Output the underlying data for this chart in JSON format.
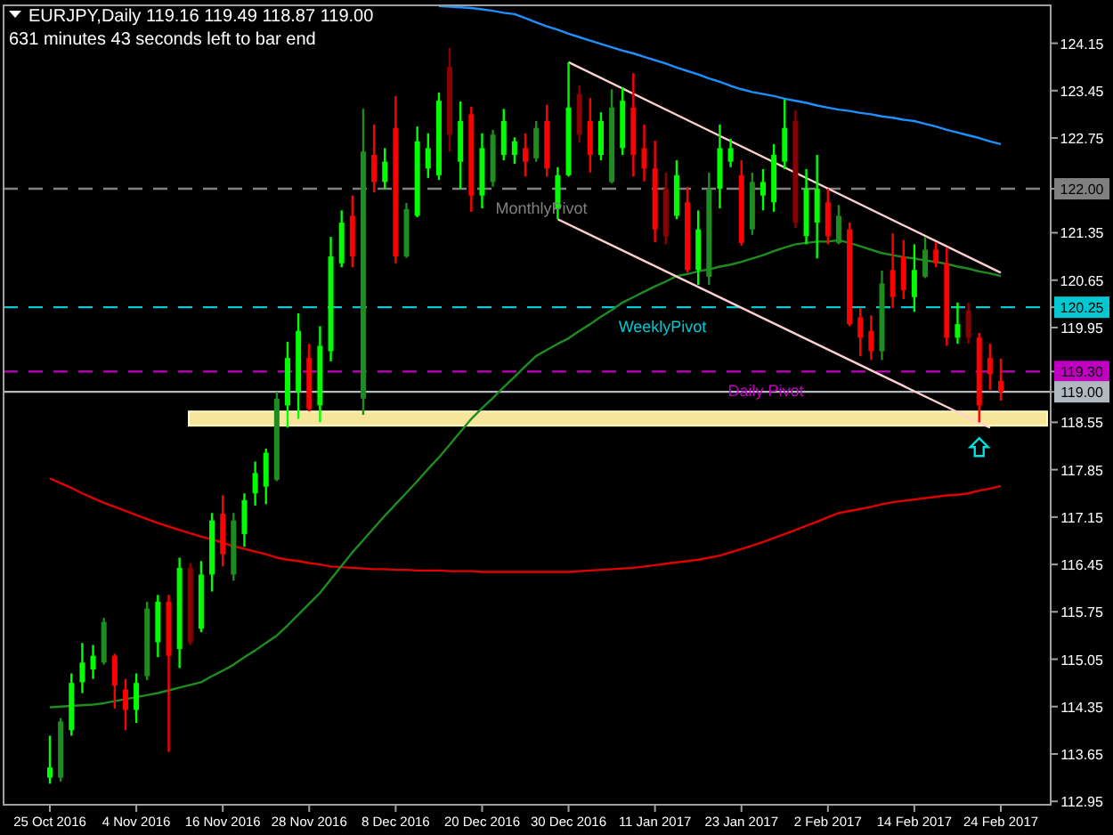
{
  "chart_data": {
    "type": "candlestick",
    "title": "EURJPY,Daily  119.16 119.49 118.87 119.00",
    "subtitle": "631 minutes 43 seconds left to bar end",
    "categories": [
      "25 Oct 2016",
      null,
      null,
      null,
      null,
      null,
      null,
      null,
      "4 Nov 2016",
      null,
      null,
      null,
      null,
      null,
      null,
      null,
      "16 Nov 2016",
      null,
      null,
      null,
      null,
      null,
      null,
      null,
      "28 Nov 2016",
      null,
      null,
      null,
      null,
      null,
      null,
      null,
      "8 Dec 2016",
      null,
      null,
      null,
      null,
      null,
      null,
      null,
      "20 Dec 2016",
      null,
      null,
      null,
      null,
      null,
      null,
      null,
      "30 Dec 2016",
      null,
      null,
      null,
      null,
      null,
      null,
      null,
      "11 Jan 2017",
      null,
      null,
      null,
      null,
      null,
      null,
      null,
      "23 Jan 2017",
      null,
      null,
      null,
      null,
      null,
      null,
      null,
      "2 Feb 2017",
      null,
      null,
      null,
      null,
      null,
      null,
      null,
      "14 Feb 2017",
      null,
      null,
      null,
      null,
      null,
      null,
      null,
      "24 Feb 2017"
    ],
    "ohlc": [
      [
        113.3,
        113.92,
        113.21,
        113.45
      ],
      [
        113.3,
        114.18,
        113.24,
        114.13
      ],
      [
        114.0,
        114.84,
        113.92,
        114.7
      ],
      [
        114.71,
        115.29,
        114.55,
        115.0
      ],
      [
        114.9,
        115.26,
        114.76,
        115.1
      ],
      [
        115.0,
        115.66,
        114.97,
        115.6
      ],
      [
        115.1,
        115.13,
        114.32,
        114.66
      ],
      [
        114.6,
        114.76,
        114.0,
        114.3
      ],
      [
        114.3,
        114.84,
        114.11,
        114.7
      ],
      [
        114.8,
        115.9,
        114.74,
        115.8
      ],
      [
        115.3,
        116.0,
        115.08,
        115.9
      ],
      [
        115.9,
        116.0,
        113.68,
        115.1
      ],
      [
        115.2,
        116.55,
        114.92,
        116.4
      ],
      [
        116.4,
        116.47,
        115.26,
        115.3
      ],
      [
        115.5,
        116.5,
        115.45,
        116.3
      ],
      [
        116.3,
        117.21,
        116.05,
        117.1
      ],
      [
        117.2,
        117.47,
        116.42,
        116.6
      ],
      [
        116.3,
        117.21,
        116.21,
        117.1
      ],
      [
        116.9,
        117.5,
        116.71,
        117.4
      ],
      [
        117.5,
        117.97,
        117.32,
        117.8
      ],
      [
        117.6,
        118.16,
        117.34,
        118.1
      ],
      [
        117.7,
        119.0,
        117.68,
        118.9
      ],
      [
        118.8,
        119.74,
        118.47,
        119.5
      ],
      [
        119.0,
        120.16,
        118.6,
        119.9
      ],
      [
        119.5,
        119.71,
        118.71,
        118.75
      ],
      [
        118.8,
        119.97,
        118.55,
        119.68
      ],
      [
        119.6,
        121.29,
        119.45,
        121.0
      ],
      [
        120.9,
        121.68,
        120.84,
        121.5
      ],
      [
        121.6,
        121.9,
        120.84,
        121.0
      ],
      [
        118.9,
        123.18,
        118.66,
        122.55
      ],
      [
        122.5,
        122.95,
        121.95,
        122.1
      ],
      [
        122.1,
        122.6,
        122.0,
        122.4
      ],
      [
        122.9,
        123.37,
        120.9,
        121.0
      ],
      [
        121.0,
        121.79,
        120.98,
        121.7
      ],
      [
        121.6,
        122.92,
        121.58,
        122.7
      ],
      [
        122.3,
        122.82,
        122.16,
        122.6
      ],
      [
        122.2,
        123.42,
        122.13,
        123.3
      ],
      [
        123.8,
        124.08,
        122.55,
        122.8
      ],
      [
        122.4,
        123.29,
        122.0,
        123.0
      ],
      [
        123.1,
        123.21,
        121.66,
        121.9
      ],
      [
        121.9,
        122.82,
        121.71,
        122.6
      ],
      [
        122.1,
        122.87,
        122.03,
        122.8
      ],
      [
        122.5,
        123.18,
        122.42,
        123.0
      ],
      [
        122.5,
        122.76,
        122.37,
        122.7
      ],
      [
        122.6,
        122.82,
        122.18,
        122.4
      ],
      [
        122.45,
        123.0,
        122.4,
        122.9
      ],
      [
        123.0,
        123.24,
        122.18,
        122.3
      ],
      [
        121.7,
        122.32,
        121.55,
        122.2
      ],
      [
        122.2,
        123.87,
        122.18,
        123.2
      ],
      [
        123.4,
        123.53,
        122.68,
        122.8
      ],
      [
        123.0,
        123.34,
        122.24,
        122.5
      ],
      [
        122.5,
        123.13,
        122.42,
        123.0
      ],
      [
        122.1,
        123.47,
        122.08,
        123.2
      ],
      [
        122.6,
        123.5,
        122.5,
        123.3
      ],
      [
        123.2,
        123.71,
        122.18,
        122.5
      ],
      [
        122.6,
        122.95,
        122.11,
        122.3
      ],
      [
        122.3,
        122.71,
        121.21,
        121.4
      ],
      [
        122.0,
        122.24,
        121.18,
        121.3
      ],
      [
        121.6,
        122.42,
        121.55,
        122.2
      ],
      [
        121.8,
        122.03,
        120.76,
        120.8
      ],
      [
        120.8,
        121.68,
        120.58,
        121.4
      ],
      [
        120.7,
        122.24,
        120.58,
        122.0
      ],
      [
        122.0,
        122.95,
        121.71,
        122.6
      ],
      [
        122.4,
        122.74,
        122.32,
        122.6
      ],
      [
        122.2,
        122.42,
        121.16,
        121.2
      ],
      [
        121.4,
        122.24,
        121.32,
        122.1
      ],
      [
        121.9,
        122.29,
        121.68,
        122.1
      ],
      [
        121.8,
        122.66,
        121.66,
        122.5
      ],
      [
        122.4,
        123.32,
        122.29,
        122.9
      ],
      [
        123.0,
        123.16,
        121.42,
        121.5
      ],
      [
        121.3,
        122.29,
        121.18,
        122.0
      ],
      [
        121.5,
        122.5,
        120.97,
        122.0
      ],
      [
        121.8,
        122.0,
        121.18,
        121.3
      ],
      [
        121.2,
        121.76,
        121.18,
        121.6
      ],
      [
        121.4,
        121.5,
        119.97,
        120.0
      ],
      [
        120.1,
        120.24,
        119.53,
        119.8
      ],
      [
        119.9,
        120.13,
        119.47,
        119.6
      ],
      [
        119.6,
        120.79,
        119.47,
        120.6
      ],
      [
        120.8,
        121.34,
        120.24,
        120.4
      ],
      [
        121.0,
        121.24,
        120.37,
        120.5
      ],
      [
        120.4,
        121.18,
        120.18,
        120.8
      ],
      [
        120.7,
        121.29,
        120.68,
        121.1
      ],
      [
        121.1,
        121.21,
        120.84,
        120.9
      ],
      [
        120.9,
        121.13,
        119.68,
        119.8
      ],
      [
        119.8,
        120.32,
        119.71,
        120.0
      ],
      [
        120.2,
        120.32,
        119.71,
        119.8
      ],
      [
        119.8,
        119.87,
        118.55,
        118.8
      ],
      [
        119.5,
        119.71,
        119.03,
        119.26
      ],
      [
        119.16,
        119.49,
        118.87,
        119.0
      ]
    ],
    "colors": [
      "#00ff00",
      "#1e8c1e",
      "#00ff00",
      "#00ff00",
      "#00ff00",
      "#1e8c1e",
      "#ff0000",
      "#ff0000",
      "#00ff00",
      "#1e8c1e",
      "#00ff00",
      "#ff0000",
      "#00ff00",
      "#8b0000",
      "#00ff00",
      "#00ff00",
      "#ff0000",
      "#1e8c1e",
      "#00ff00",
      "#00ff00",
      "#00ff00",
      "#1e8c1e",
      "#00ff00",
      "#00ff00",
      "#ff0000",
      "#00ff00",
      "#00ff00",
      "#00ff00",
      "#ff0000",
      "#1e8c1e",
      "#ff0000",
      "#00ff00",
      "#ff0000",
      "#1e8c1e",
      "#00ff00",
      "#00ff00",
      "#00ff00",
      "#8b0000",
      "#00ff00",
      "#ff0000",
      "#00ff00",
      "#1e8c1e",
      "#00ff00",
      "#00ff00",
      "#ff0000",
      "#1e8c1e",
      "#ff0000",
      "#00ff00",
      "#00ff00",
      "#8b0000",
      "#ff0000",
      "#00ff00",
      "#1e8c1e",
      "#00ff00",
      "#ff0000",
      "#ff0000",
      "#ff0000",
      "#8b0000",
      "#00ff00",
      "#ff0000",
      "#00ff00",
      "#1e8c1e",
      "#00ff00",
      "#00ff00",
      "#ff0000",
      "#1e8c1e",
      "#00ff00",
      "#00ff00",
      "#00ff00",
      "#8b0000",
      "#00ff00",
      "#00ff00",
      "#ff0000",
      "#1e8c1e",
      "#ff0000",
      "#ff0000",
      "#ff0000",
      "#1e8c1e",
      "#ff0000",
      "#ff0000",
      "#00ff00",
      "#1e8c1e",
      "#ff0000",
      "#ff0000",
      "#00ff00",
      "#8b0000",
      "#ff0000",
      "#ff0000",
      "#ff0000"
    ],
    "series": [
      {
        "type": "line",
        "color": "#e00000",
        "values": [
          117.72,
          117.65,
          117.58,
          117.5,
          117.43,
          117.36,
          117.3,
          117.24,
          117.18,
          117.12,
          117.06,
          117.01,
          116.96,
          116.91,
          116.86,
          116.82,
          116.77,
          116.72,
          116.68,
          116.64,
          116.6,
          116.55,
          116.52,
          116.5,
          116.47,
          116.45,
          116.42,
          116.41,
          116.4,
          116.39,
          116.38,
          116.38,
          116.37,
          116.37,
          116.36,
          116.36,
          116.36,
          116.35,
          116.35,
          116.35,
          116.34,
          116.34,
          116.34,
          116.34,
          116.34,
          116.34,
          116.34,
          116.34,
          116.34,
          116.35,
          116.36,
          116.37,
          116.38,
          116.39,
          116.4,
          116.42,
          116.44,
          116.46,
          116.48,
          116.5,
          116.52,
          116.55,
          116.58,
          116.63,
          116.68,
          116.73,
          116.78,
          116.84,
          116.9,
          116.96,
          117.02,
          117.08,
          117.15,
          117.21,
          117.24,
          117.27,
          117.3,
          117.34,
          117.37,
          117.39,
          117.41,
          117.43,
          117.45,
          117.47,
          117.48,
          117.5,
          117.54,
          117.57,
          117.61
        ]
      },
      {
        "type": "line",
        "color": "#1e8c1e",
        "values": [
          114.34,
          114.35,
          114.36,
          114.37,
          114.38,
          114.4,
          114.43,
          114.46,
          114.49,
          114.52,
          114.55,
          114.59,
          114.63,
          114.67,
          114.71,
          114.8,
          114.88,
          114.97,
          115.08,
          115.18,
          115.29,
          115.4,
          115.55,
          115.71,
          115.87,
          116.03,
          116.23,
          116.43,
          116.63,
          116.81,
          116.99,
          117.17,
          117.34,
          117.51,
          117.68,
          117.86,
          118.03,
          118.22,
          118.41,
          118.6,
          118.76,
          118.91,
          119.07,
          119.22,
          119.38,
          119.53,
          119.62,
          119.71,
          119.79,
          119.9,
          120.0,
          120.11,
          120.21,
          120.32,
          120.4,
          120.48,
          120.56,
          120.63,
          120.71,
          120.74,
          120.78,
          120.81,
          120.85,
          120.88,
          120.92,
          120.97,
          121.02,
          121.08,
          121.13,
          121.18,
          121.2,
          121.22,
          121.22,
          121.24,
          121.2,
          121.15,
          121.1,
          121.05,
          121.02,
          120.99,
          120.97,
          120.94,
          120.92,
          120.89,
          120.85,
          120.82,
          120.78,
          120.75,
          120.71
        ]
      },
      {
        "type": "line",
        "color": "#1e90ff",
        "values": [
          null,
          null,
          null,
          null,
          null,
          null,
          null,
          null,
          null,
          null,
          null,
          null,
          null,
          null,
          null,
          null,
          null,
          null,
          null,
          null,
          null,
          null,
          null,
          null,
          null,
          null,
          null,
          null,
          null,
          null,
          null,
          null,
          null,
          null,
          null,
          null,
          124.7,
          124.69,
          124.68,
          124.67,
          124.65,
          124.63,
          124.6,
          124.58,
          124.52,
          124.46,
          124.4,
          124.35,
          124.29,
          124.24,
          124.19,
          124.14,
          124.09,
          124.04,
          124.0,
          123.95,
          123.9,
          123.85,
          123.79,
          123.74,
          123.69,
          123.63,
          123.58,
          123.52,
          123.47,
          123.43,
          123.4,
          123.37,
          123.33,
          123.3,
          123.27,
          123.23,
          123.2,
          123.17,
          123.15,
          123.12,
          123.1,
          123.07,
          123.05,
          123.02,
          123.0,
          122.96,
          122.92,
          122.87,
          122.83,
          122.79,
          122.75,
          122.7,
          122.66
        ]
      },
      {
        "type": "line",
        "color": "#ffd0d0",
        "values": [
          null,
          null,
          null,
          null,
          null,
          null,
          null,
          null,
          null,
          null,
          null,
          null,
          null,
          null,
          null,
          null,
          null,
          null,
          null,
          null,
          null,
          null,
          null,
          null,
          null,
          null,
          null,
          null,
          null,
          null,
          null,
          null,
          null,
          null,
          null,
          null,
          null,
          null,
          null,
          null,
          null,
          null,
          null,
          null,
          null,
          null,
          null,
          null,
          123.87,
          null,
          null,
          null,
          null,
          null,
          null,
          null,
          null,
          null,
          null,
          null,
          null,
          null,
          null,
          null,
          null,
          null,
          null,
          null,
          null,
          null,
          null,
          null,
          null,
          null,
          null,
          null,
          null,
          null,
          null,
          null,
          null,
          null,
          null,
          null,
          null,
          null,
          null,
          null,
          120.76
        ]
      },
      {
        "type": "line",
        "color": "#ffd0d0",
        "values": [
          null,
          null,
          null,
          null,
          null,
          null,
          null,
          null,
          null,
          null,
          null,
          null,
          null,
          null,
          null,
          null,
          null,
          null,
          null,
          null,
          null,
          null,
          null,
          null,
          null,
          null,
          null,
          null,
          null,
          null,
          null,
          null,
          null,
          null,
          null,
          null,
          null,
          null,
          null,
          null,
          null,
          null,
          null,
          null,
          null,
          null,
          null,
          121.55,
          null,
          null,
          null,
          null,
          null,
          null,
          null,
          null,
          null,
          null,
          null,
          null,
          null,
          null,
          null,
          null,
          null,
          null,
          null,
          null,
          null,
          null,
          null,
          null,
          null,
          null,
          null,
          null,
          null,
          null,
          null,
          null,
          null,
          null,
          null,
          null,
          null,
          null,
          null,
          118.47,
          null
        ]
      }
    ],
    "ylim": [
      112.9,
      124.71
    ],
    "yticks": [
      124.15,
      123.45,
      122.75,
      {
        "value": 122.0,
        "label": "122.00"
      },
      121.35,
      120.65,
      {
        "value": 120.25,
        "label": "120.25"
      },
      119.95,
      {
        "value": 119.3,
        "label": "119.30"
      },
      {
        "value": 119.0,
        "label": "119.00"
      },
      118.55,
      117.85,
      117.15,
      116.45,
      115.75,
      115.05,
      114.35,
      113.65,
      112.95
    ],
    "ref_lines": [
      {
        "axis": "y",
        "value": 122.0,
        "label": "MonthlyPivot",
        "color": "#808080",
        "line_style": "dashed"
      },
      {
        "axis": "y",
        "value": 120.25,
        "label": "WeeklyPivot",
        "color": "#00c8d0",
        "line_style": "dashed"
      },
      {
        "axis": "y",
        "value": 119.3,
        "label": "Daily Pivot",
        "color": "#c000c0",
        "line_style": "dashed"
      },
      {
        "axis": "y",
        "value": 119.0,
        "color": "#b0b8c0",
        "line_style": "solid"
      }
    ],
    "bands": [
      {
        "axis": "y",
        "from": 118.5,
        "to": 118.71,
        "color": "#f5e69c"
      }
    ]
  }
}
